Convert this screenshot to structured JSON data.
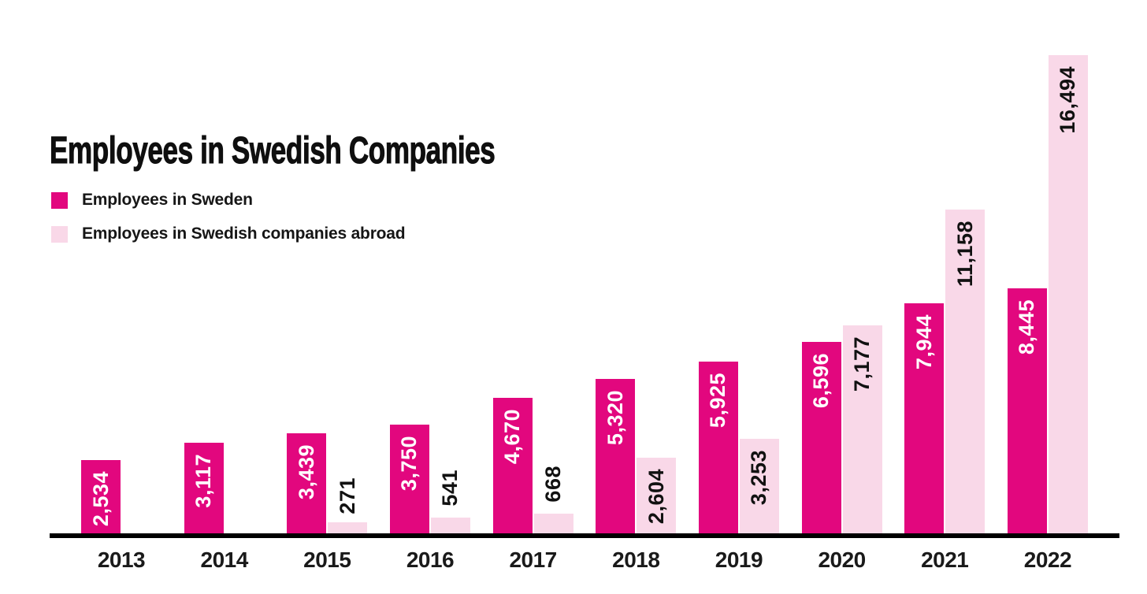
{
  "page": {
    "background": "#ffffff",
    "axis_color": "#000000",
    "text_color": "#1a1a1a"
  },
  "chart_data": {
    "type": "bar",
    "title": "Employees in Swedish Companies",
    "categories": [
      "2013",
      "2014",
      "2015",
      "2016",
      "2017",
      "2018",
      "2019",
      "2020",
      "2021",
      "2022"
    ],
    "series": [
      {
        "name": "Employees in Sweden",
        "color": "#E2077E",
        "label_color": "#ffffff",
        "values": [
          2534,
          3117,
          3439,
          3750,
          4670,
          5320,
          5925,
          6596,
          7944,
          8445
        ],
        "labels": [
          "2,534",
          "3,117",
          "3,439",
          "3,750",
          "4,670",
          "5,320",
          "5,925",
          "6,596",
          "7,944",
          "8,445"
        ]
      },
      {
        "name": "Employees in Swedish companies abroad",
        "color": "#F9D8E8",
        "label_color": "#111111",
        "values": [
          null,
          null,
          271,
          541,
          668,
          2604,
          3253,
          7177,
          11158,
          16494
        ],
        "labels": [
          null,
          null,
          "271",
          "541",
          "668",
          "2,604",
          "3,253",
          "7,177",
          "11,158",
          "16,494"
        ]
      }
    ],
    "ylim": [
      0,
      16494
    ],
    "grid": false,
    "legend_position": "top-left",
    "value_labels": "rotated-90-bottom-to-top"
  }
}
